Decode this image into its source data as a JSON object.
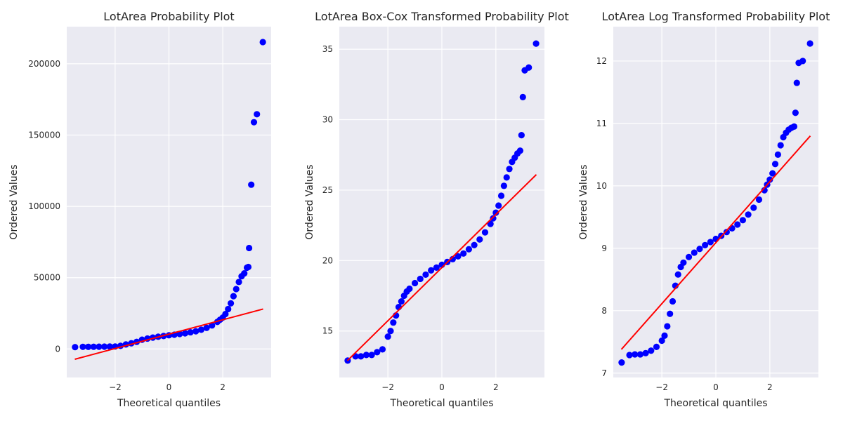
{
  "figure": {
    "background": "#ffffff",
    "axes_background": "#eaeaf2",
    "grid_color": "#ffffff",
    "point_color": "#0000ff",
    "fit_line_color": "#ff0000",
    "text_color": "#262626"
  },
  "chart_data": [
    {
      "type": "scatter",
      "title": "LotArea Probability Plot",
      "xlabel": "Theoretical quantiles",
      "ylabel": "Ordered Values",
      "xlim": [
        -3.8,
        3.8
      ],
      "ylim": [
        -20000,
        226000
      ],
      "xticks": [
        -2,
        0,
        2
      ],
      "xtick_labels": [
        "−2",
        "0",
        "2"
      ],
      "yticks": [
        0,
        50000,
        100000,
        150000,
        200000
      ],
      "ytick_labels": [
        "0",
        "50000",
        "100000",
        "150000",
        "200000"
      ],
      "grid": true,
      "fit_line": [
        [
          -3.5,
          -7200
        ],
        [
          3.5,
          28000
        ]
      ],
      "points": [
        [
          -3.49,
          1300
        ],
        [
          -3.2,
          1500
        ],
        [
          -3.0,
          1500
        ],
        [
          -2.8,
          1550
        ],
        [
          -2.6,
          1600
        ],
        [
          -2.4,
          1650
        ],
        [
          -2.2,
          1700
        ],
        [
          -2.0,
          1750
        ],
        [
          -1.8,
          2200
        ],
        [
          -1.6,
          3200
        ],
        [
          -1.4,
          4000
        ],
        [
          -1.2,
          5000
        ],
        [
          -1.0,
          6500
        ],
        [
          -0.8,
          7300
        ],
        [
          -0.6,
          8000
        ],
        [
          -0.4,
          8600
        ],
        [
          -0.2,
          9100
        ],
        [
          0.0,
          9600
        ],
        [
          0.2,
          10000
        ],
        [
          0.4,
          10500
        ],
        [
          0.6,
          11000
        ],
        [
          0.8,
          11700
        ],
        [
          1.0,
          12400
        ],
        [
          1.2,
          13500
        ],
        [
          1.4,
          14800
        ],
        [
          1.6,
          16500
        ],
        [
          1.8,
          19000
        ],
        [
          1.9,
          20500
        ],
        [
          2.0,
          22000
        ],
        [
          2.1,
          24500
        ],
        [
          2.2,
          28000
        ],
        [
          2.3,
          32000
        ],
        [
          2.4,
          37000
        ],
        [
          2.5,
          42000
        ],
        [
          2.6,
          47000
        ],
        [
          2.7,
          51000
        ],
        [
          2.8,
          53000
        ],
        [
          2.9,
          57000
        ],
        [
          2.95,
          57500
        ],
        [
          2.98,
          70800
        ],
        [
          3.06,
          115200
        ],
        [
          3.16,
          159000
        ],
        [
          3.27,
          164600
        ],
        [
          3.49,
          215200
        ]
      ]
    },
    {
      "type": "scatter",
      "title": "LotArea Box-Cox Transformed Probability Plot",
      "xlabel": "Theoretical quantiles",
      "ylabel": "Ordered Values",
      "xlim": [
        -3.8,
        3.8
      ],
      "ylim": [
        11.7,
        36.6
      ],
      "xticks": [
        -2,
        0,
        2
      ],
      "xtick_labels": [
        "−2",
        "0",
        "2"
      ],
      "yticks": [
        15,
        20,
        25,
        30,
        35
      ],
      "ytick_labels": [
        "15",
        "20",
        "25",
        "30",
        "35"
      ],
      "grid": true,
      "fit_line": [
        [
          -3.5,
          12.9
        ],
        [
          3.5,
          26.1
        ]
      ],
      "points": [
        [
          -3.49,
          12.9
        ],
        [
          -3.2,
          13.2
        ],
        [
          -3.0,
          13.2
        ],
        [
          -2.8,
          13.3
        ],
        [
          -2.6,
          13.3
        ],
        [
          -2.4,
          13.5
        ],
        [
          -2.2,
          13.7
        ],
        [
          -2.0,
          14.6
        ],
        [
          -1.9,
          15.0
        ],
        [
          -1.8,
          15.6
        ],
        [
          -1.7,
          16.1
        ],
        [
          -1.6,
          16.7
        ],
        [
          -1.5,
          17.1
        ],
        [
          -1.4,
          17.5
        ],
        [
          -1.3,
          17.8
        ],
        [
          -1.2,
          18.0
        ],
        [
          -1.0,
          18.4
        ],
        [
          -0.8,
          18.7
        ],
        [
          -0.6,
          19.0
        ],
        [
          -0.4,
          19.3
        ],
        [
          -0.2,
          19.5
        ],
        [
          0.0,
          19.7
        ],
        [
          0.2,
          19.9
        ],
        [
          0.4,
          20.1
        ],
        [
          0.6,
          20.3
        ],
        [
          0.8,
          20.5
        ],
        [
          1.0,
          20.8
        ],
        [
          1.2,
          21.1
        ],
        [
          1.4,
          21.5
        ],
        [
          1.6,
          22.0
        ],
        [
          1.8,
          22.6
        ],
        [
          1.9,
          23.0
        ],
        [
          2.0,
          23.4
        ],
        [
          2.1,
          23.9
        ],
        [
          2.2,
          24.6
        ],
        [
          2.3,
          25.3
        ],
        [
          2.4,
          25.9
        ],
        [
          2.5,
          26.5
        ],
        [
          2.6,
          27.0
        ],
        [
          2.7,
          27.3
        ],
        [
          2.8,
          27.6
        ],
        [
          2.9,
          27.8
        ],
        [
          2.95,
          28.9
        ],
        [
          3.0,
          31.6
        ],
        [
          3.07,
          33.5
        ],
        [
          3.22,
          33.7
        ],
        [
          3.49,
          35.4
        ]
      ]
    },
    {
      "type": "scatter",
      "title": "LotArea Log Transformed Probability Plot",
      "xlabel": "Theoretical quantiles",
      "ylabel": "Ordered Values",
      "xlim": [
        -3.8,
        3.8
      ],
      "ylim": [
        6.93,
        12.55
      ],
      "xticks": [
        -2,
        0,
        2
      ],
      "xtick_labels": [
        "−2",
        "0",
        "2"
      ],
      "yticks": [
        7,
        8,
        9,
        10,
        11,
        12
      ],
      "ytick_labels": [
        "7",
        "8",
        "9",
        "10",
        "11",
        "12"
      ],
      "grid": true,
      "fit_line": [
        [
          -3.5,
          7.38
        ],
        [
          3.5,
          10.8
        ]
      ],
      "points": [
        [
          -3.49,
          7.17
        ],
        [
          -3.2,
          7.29
        ],
        [
          -3.0,
          7.3
        ],
        [
          -2.8,
          7.3
        ],
        [
          -2.6,
          7.32
        ],
        [
          -2.4,
          7.36
        ],
        [
          -2.2,
          7.42
        ],
        [
          -2.0,
          7.52
        ],
        [
          -1.9,
          7.6
        ],
        [
          -1.8,
          7.75
        ],
        [
          -1.7,
          7.95
        ],
        [
          -1.6,
          8.15
        ],
        [
          -1.5,
          8.4
        ],
        [
          -1.4,
          8.58
        ],
        [
          -1.3,
          8.7
        ],
        [
          -1.2,
          8.77
        ],
        [
          -1.0,
          8.86
        ],
        [
          -0.8,
          8.93
        ],
        [
          -0.6,
          8.99
        ],
        [
          -0.4,
          9.05
        ],
        [
          -0.2,
          9.1
        ],
        [
          0.0,
          9.15
        ],
        [
          0.2,
          9.2
        ],
        [
          0.4,
          9.26
        ],
        [
          0.6,
          9.32
        ],
        [
          0.8,
          9.38
        ],
        [
          1.0,
          9.45
        ],
        [
          1.2,
          9.54
        ],
        [
          1.4,
          9.65
        ],
        [
          1.6,
          9.78
        ],
        [
          1.8,
          9.93
        ],
        [
          1.9,
          10.02
        ],
        [
          2.0,
          10.1
        ],
        [
          2.1,
          10.2
        ],
        [
          2.2,
          10.35
        ],
        [
          2.3,
          10.5
        ],
        [
          2.4,
          10.65
        ],
        [
          2.5,
          10.78
        ],
        [
          2.6,
          10.85
        ],
        [
          2.7,
          10.9
        ],
        [
          2.8,
          10.93
        ],
        [
          2.9,
          10.95
        ],
        [
          2.95,
          11.17
        ],
        [
          3.0,
          11.65
        ],
        [
          3.07,
          11.97
        ],
        [
          3.22,
          12.0
        ],
        [
          3.49,
          12.28
        ]
      ]
    }
  ]
}
